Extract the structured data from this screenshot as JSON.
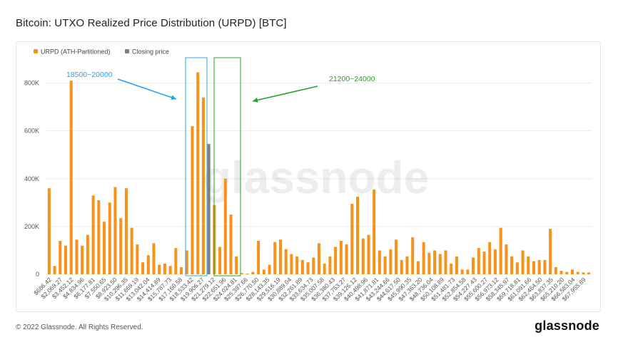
{
  "title": "Bitcoin: UTXO Realized Price Distribution (URPD) [BTC]",
  "footer": {
    "copyright": "© 2022 Glassnode. All Rights Reserved.",
    "brand": "glassnode"
  },
  "watermark": "glassnode",
  "colors": {
    "bar": "#F7931A",
    "closing": "#7f7f7f",
    "blue": "#29A3E8",
    "green": "#21A32B",
    "grid": "#ececec"
  },
  "chart_data": {
    "type": "bar",
    "title": "Bitcoin: UTXO Realized Price Distribution (URPD) [BTC]",
    "xlabel": "",
    "ylabel": "",
    "ylim": [
      0,
      900000
    ],
    "yticks": [
      0,
      200000,
      400000,
      600000,
      800000
    ],
    "ytick_labels": [
      "0",
      "200K",
      "400K",
      "600K",
      "800K"
    ],
    "legend": {
      "position": "top-left",
      "items": [
        {
          "name": "URPD (ATH-Partitioned)",
          "color": "#F7931A"
        },
        {
          "name": "Closing price",
          "color": "#7f7f7f"
        }
      ]
    },
    "xtick_labels": [
      "$686.42",
      "$2,069.27",
      "$3,452.12",
      "$4,834.96",
      "$6,177.81",
      "$7,550.65",
      "$8,923.50",
      "$10,296.35",
      "$11,669.19",
      "$13,042.04",
      "$14,414.89",
      "$15,787.73",
      "$17,160.58",
      "$18,533.42",
      "$19,906.27",
      "$21,279.12",
      "$22,651.96",
      "$24,024.81",
      "$25,397.66",
      "$26,770.50",
      "$28,143.35",
      "$29,516.19",
      "$30,889.04",
      "$32,261.89",
      "$33,634.73",
      "$35,007.58",
      "$36,380.43",
      "$37,753.27",
      "$39,126.12",
      "$40,498.96",
      "$41,871.81",
      "$43,244.66",
      "$44,617.50",
      "$45,990.35",
      "$47,363.20",
      "$48,736.04",
      "$50,108.89",
      "$51,481.73",
      "$52,854.58",
      "$54,227.43",
      "$55,600.27",
      "$56,973.12",
      "$58,345.97",
      "$59,718.81",
      "$61,091.66",
      "$62,464.50",
      "$63,837.35",
      "$65,210.20",
      "$66,583.04",
      "$67,955.89"
    ],
    "values": [
      360000,
      35000,
      140000,
      120000,
      810000,
      145000,
      120000,
      165000,
      330000,
      310000,
      220000,
      300000,
      365000,
      235000,
      360000,
      195000,
      125000,
      50000,
      80000,
      130000,
      40000,
      45000,
      35000,
      110000,
      30000,
      100000,
      620000,
      845000,
      740000,
      545000,
      290000,
      115000,
      400000,
      250000,
      75000,
      5000,
      3000,
      10000,
      140000,
      20000,
      40000,
      135000,
      145000,
      105000,
      85000,
      75000,
      60000,
      50000,
      70000,
      130000,
      45000,
      75000,
      115000,
      140000,
      125000,
      295000,
      325000,
      150000,
      165000,
      355000,
      100000,
      75000,
      105000,
      145000,
      60000,
      75000,
      155000,
      55000,
      135000,
      90000,
      100000,
      85000,
      100000,
      45000,
      75000,
      20000,
      20000,
      70000,
      110000,
      95000,
      135000,
      105000,
      195000,
      125000,
      75000,
      50000,
      100000,
      75000,
      55000,
      60000,
      60000,
      190000,
      30000,
      15000,
      10000,
      20000,
      10000,
      8000,
      8000
    ],
    "closing_index": 29,
    "annotations": [
      {
        "text": "18500~20000",
        "color": "#29A3E8",
        "range_start_index": 25,
        "range_end_index": 28
      },
      {
        "text": "21200~24000",
        "color": "#21A32B",
        "range_start_index": 30,
        "range_end_index": 34
      }
    ]
  }
}
